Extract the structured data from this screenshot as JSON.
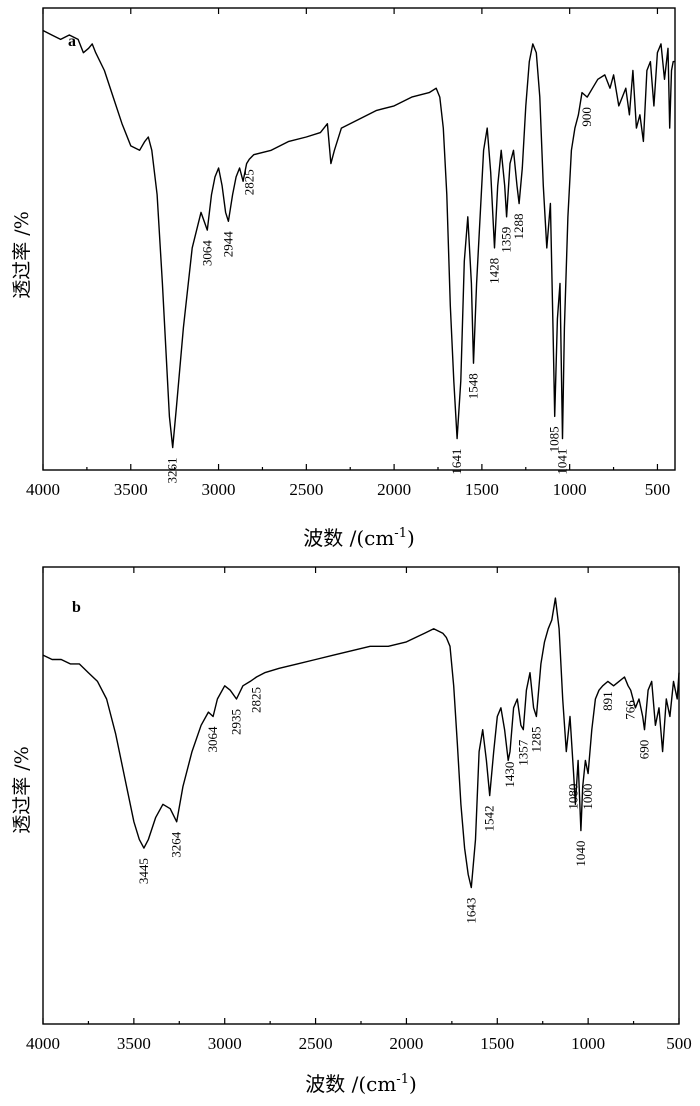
{
  "chart_data": [
    {
      "type": "line",
      "panel_label": "a",
      "xlabel": "波数 /(cm",
      "xlabel_sup": "-1",
      "xlabel_close": ")",
      "ylabel": "透过率 /%",
      "xlim": [
        4000,
        400
      ],
      "xticks": [
        "4000",
        "3500",
        "3000",
        "2500",
        "2000",
        "1500",
        "1000",
        "500"
      ],
      "tick_values": [
        4000,
        3500,
        3000,
        2500,
        2000,
        1500,
        1000,
        500
      ],
      "peaks": [
        {
          "x": 3261,
          "label": "3261"
        },
        {
          "x": 3064,
          "label": "3064"
        },
        {
          "x": 2944,
          "label": "2944"
        },
        {
          "x": 2825,
          "label": "2825"
        },
        {
          "x": 1641,
          "label": "1641"
        },
        {
          "x": 1548,
          "label": "1548"
        },
        {
          "x": 1428,
          "label": "1428"
        },
        {
          "x": 1359,
          "label": "1359"
        },
        {
          "x": 1288,
          "label": "1288"
        },
        {
          "x": 1085,
          "label": "1085"
        },
        {
          "x": 1041,
          "label": "1041"
        },
        {
          "x": 900,
          "label": "900"
        }
      ],
      "series": [
        {
          "x": [
            4000,
            3950,
            3900,
            3850,
            3800,
            3770,
            3740,
            3720,
            3700,
            3650,
            3600,
            3550,
            3500,
            3450,
            3420,
            3400,
            3380,
            3350,
            3320,
            3300,
            3280,
            3261,
            3240,
            3200,
            3150,
            3100,
            3064,
            3040,
            3020,
            3000,
            2980,
            2960,
            2944,
            2920,
            2900,
            2880,
            2860,
            2840,
            2825,
            2800,
            2700,
            2600,
            2500,
            2420,
            2380,
            2360,
            2340,
            2300,
            2200,
            2100,
            2000,
            1900,
            1800,
            1760,
            1740,
            1720,
            1700,
            1680,
            1660,
            1641,
            1620,
            1600,
            1580,
            1560,
            1548,
            1530,
            1510,
            1490,
            1470,
            1450,
            1428,
            1410,
            1390,
            1370,
            1359,
            1340,
            1320,
            1300,
            1288,
            1270,
            1250,
            1230,
            1210,
            1190,
            1170,
            1150,
            1130,
            1110,
            1095,
            1085,
            1070,
            1055,
            1041,
            1030,
            1010,
            990,
            970,
            950,
            930,
            900,
            870,
            840,
            800,
            770,
            750,
            720,
            700,
            680,
            660,
            640,
            620,
            600,
            580,
            560,
            540,
            520,
            500,
            480,
            460,
            440,
            430,
            420,
            410,
            400
          ],
          "y": [
            97,
            96,
            95,
            96,
            95,
            92,
            93,
            94,
            92,
            88,
            82,
            76,
            71,
            70,
            72,
            73,
            70,
            60,
            40,
            25,
            10,
            3,
            12,
            30,
            48,
            56,
            52,
            60,
            64,
            66,
            62,
            56,
            54,
            60,
            64,
            66,
            63,
            67,
            68,
            69,
            70,
            72,
            73,
            74,
            76,
            67,
            70,
            75,
            77,
            79,
            80,
            82,
            83,
            84,
            82,
            75,
            60,
            35,
            18,
            5,
            18,
            45,
            55,
            40,
            22,
            40,
            55,
            70,
            75,
            65,
            48,
            62,
            70,
            62,
            55,
            67,
            70,
            62,
            58,
            66,
            80,
            90,
            94,
            92,
            82,
            62,
            48,
            58,
            30,
            10,
            32,
            40,
            5,
            30,
            55,
            70,
            75,
            78,
            83,
            82,
            84,
            86,
            87,
            84,
            87,
            80,
            82,
            84,
            78,
            88,
            75,
            78,
            72,
            88,
            90,
            80,
            92,
            94,
            86,
            93,
            75,
            88,
            90,
            90
          ]
        }
      ]
    },
    {
      "type": "line",
      "panel_label": "b",
      "xlabel": "波数 /(cm",
      "xlabel_sup": "-1",
      "xlabel_close": ")",
      "ylabel": "透过率 /%",
      "xlim": [
        4000,
        500
      ],
      "xticks": [
        "4000",
        "3500",
        "3000",
        "2500",
        "2000",
        "1500",
        "1000",
        "500"
      ],
      "tick_values": [
        4000,
        3500,
        3000,
        2500,
        2000,
        1500,
        1000,
        500
      ],
      "peaks": [
        {
          "x": 3445,
          "label": "3445"
        },
        {
          "x": 3264,
          "label": "3264"
        },
        {
          "x": 3064,
          "label": "3064"
        },
        {
          "x": 2935,
          "label": "2935"
        },
        {
          "x": 2825,
          "label": "2825"
        },
        {
          "x": 1643,
          "label": "1643"
        },
        {
          "x": 1542,
          "label": "1542"
        },
        {
          "x": 1430,
          "label": "1430"
        },
        {
          "x": 1357,
          "label": "1357"
        },
        {
          "x": 1285,
          "label": "1285"
        },
        {
          "x": 1080,
          "label": "1080"
        },
        {
          "x": 1040,
          "label": "1040"
        },
        {
          "x": 1000,
          "label": "1000"
        },
        {
          "x": 891,
          "label": "891"
        },
        {
          "x": 766,
          "label": "766"
        },
        {
          "x": 690,
          "label": "690"
        }
      ],
      "series": [
        {
          "x": [
            4000,
            3950,
            3900,
            3850,
            3800,
            3750,
            3700,
            3650,
            3600,
            3550,
            3500,
            3470,
            3445,
            3420,
            3380,
            3340,
            3300,
            3264,
            3230,
            3180,
            3130,
            3090,
            3064,
            3040,
            3000,
            2970,
            2935,
            2900,
            2860,
            2825,
            2780,
            2700,
            2600,
            2500,
            2400,
            2300,
            2200,
            2100,
            2000,
            1900,
            1850,
            1800,
            1780,
            1760,
            1740,
            1720,
            1700,
            1680,
            1660,
            1643,
            1620,
            1600,
            1580,
            1560,
            1542,
            1520,
            1500,
            1480,
            1460,
            1440,
            1430,
            1410,
            1390,
            1370,
            1357,
            1340,
            1320,
            1300,
            1285,
            1260,
            1240,
            1220,
            1200,
            1180,
            1160,
            1140,
            1120,
            1100,
            1080,
            1070,
            1055,
            1040,
            1030,
            1015,
            1000,
            980,
            960,
            940,
            920,
            891,
            860,
            830,
            800,
            780,
            766,
            740,
            720,
            700,
            690,
            670,
            650,
            630,
            610,
            590,
            570,
            550,
            530,
            510,
            500
          ],
          "y": [
            82,
            81,
            81,
            80,
            80,
            78,
            76,
            72,
            64,
            54,
            44,
            40,
            38,
            40,
            45,
            48,
            47,
            44,
            52,
            60,
            66,
            69,
            68,
            72,
            75,
            74,
            72,
            75,
            76,
            77,
            78,
            79,
            80,
            81,
            82,
            83,
            84,
            84,
            85,
            87,
            88,
            87,
            86,
            84,
            75,
            62,
            48,
            38,
            32,
            29,
            40,
            60,
            65,
            58,
            50,
            60,
            68,
            70,
            65,
            58,
            60,
            70,
            72,
            66,
            65,
            74,
            78,
            70,
            68,
            80,
            85,
            88,
            90,
            95,
            88,
            72,
            60,
            68,
            55,
            48,
            58,
            42,
            52,
            58,
            55,
            65,
            72,
            74,
            75,
            76,
            75,
            76,
            77,
            75,
            74,
            70,
            72,
            68,
            65,
            74,
            76,
            66,
            70,
            60,
            72,
            68,
            76,
            72,
            78
          ]
        }
      ]
    }
  ]
}
